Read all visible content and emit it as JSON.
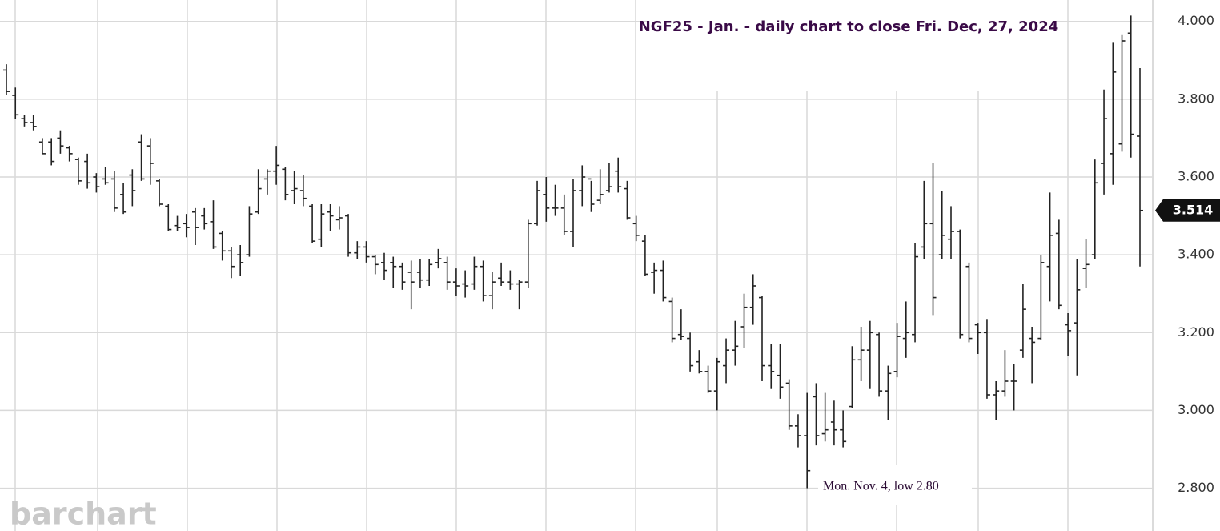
{
  "chart_data": {
    "type": "ohlc",
    "title": "NGF25 - Jan.  - daily chart to close Fri. Dec, 27, 2024",
    "annotation": "Mon. Nov. 4, low 2.80",
    "watermark": "barchart",
    "last_price": 3.514,
    "ylim": [
      2.69,
      4.055
    ],
    "yticks": [
      {
        "value": 2.8,
        "label": "2.800"
      },
      {
        "value": 3.0,
        "label": "3.000"
      },
      {
        "value": 3.2,
        "label": "3.200"
      },
      {
        "value": 3.4,
        "label": "3.400"
      },
      {
        "value": 3.6,
        "label": "3.600"
      },
      {
        "value": 3.8,
        "label": "3.800"
      },
      {
        "value": 4.0,
        "label": "4.000"
      }
    ],
    "grid": true,
    "color": "#222222",
    "open": [
      3.875,
      3.81,
      3.75,
      3.74,
      3.69,
      3.69,
      3.7,
      3.675,
      3.645,
      3.64,
      3.6,
      3.595,
      3.595,
      3.555,
      3.605,
      3.69,
      3.68,
      3.59,
      3.525,
      3.475,
      3.48,
      3.51,
      3.5,
      3.485,
      3.455,
      3.41,
      3.4,
      3.4,
      3.51,
      3.595,
      3.615,
      3.62,
      3.565,
      3.565,
      3.525,
      3.44,
      3.51,
      3.49,
      3.5,
      3.405,
      3.42,
      3.395,
      3.38,
      3.38,
      3.37,
      3.355,
      3.355,
      3.335,
      3.38,
      3.38,
      3.33,
      3.325,
      3.325,
      3.37,
      3.295,
      3.34,
      3.33,
      3.325,
      3.33,
      3.48,
      3.555,
      3.52,
      3.52,
      3.46,
      3.565,
      3.595,
      3.54,
      3.565,
      3.615,
      3.57,
      3.48,
      3.435,
      3.355,
      3.36,
      3.28,
      3.195,
      3.185,
      3.125,
      3.1,
      3.05,
      3.115,
      3.155,
      3.215,
      3.265,
      3.29,
      3.115,
      3.09,
      3.07,
      2.96,
      2.935,
      3.035,
      2.94,
      2.97,
      2.95,
      3.01,
      3.13,
      3.155,
      3.195,
      3.05,
      3.1,
      3.185,
      3.195,
      3.42,
      3.48,
      3.4,
      3.44,
      3.46,
      3.37,
      3.22,
      3.2,
      3.04,
      3.05,
      3.075,
      3.155,
      3.185,
      3.185,
      3.37,
      3.455,
      3.22,
      3.225,
      3.365,
      3.4,
      3.635,
      3.66,
      3.685,
      3.97,
      3.705
    ],
    "high": [
      3.89,
      3.83,
      3.76,
      3.76,
      3.7,
      3.7,
      3.72,
      3.68,
      3.65,
      3.66,
      3.61,
      3.625,
      3.615,
      3.585,
      3.62,
      3.71,
      3.7,
      3.595,
      3.53,
      3.5,
      3.505,
      3.52,
      3.52,
      3.54,
      3.46,
      3.42,
      3.425,
      3.525,
      3.62,
      3.62,
      3.68,
      3.625,
      3.615,
      3.605,
      3.53,
      3.53,
      3.53,
      3.525,
      3.505,
      3.435,
      3.435,
      3.4,
      3.405,
      3.395,
      3.38,
      3.385,
      3.39,
      3.39,
      3.415,
      3.395,
      3.365,
      3.36,
      3.395,
      3.385,
      3.355,
      3.38,
      3.36,
      3.335,
      3.49,
      3.59,
      3.6,
      3.58,
      3.555,
      3.595,
      3.63,
      3.59,
      3.62,
      3.635,
      3.65,
      3.59,
      3.5,
      3.45,
      3.38,
      3.385,
      3.29,
      3.26,
      3.2,
      3.155,
      3.115,
      3.135,
      3.185,
      3.23,
      3.3,
      3.35,
      3.295,
      3.17,
      3.17,
      3.08,
      2.99,
      3.045,
      3.07,
      3.045,
      3.025,
      3.0,
      3.165,
      3.215,
      3.23,
      3.2,
      3.115,
      3.225,
      3.28,
      3.43,
      3.59,
      3.635,
      3.565,
      3.525,
      3.465,
      3.38,
      3.225,
      3.235,
      3.075,
      3.155,
      3.12,
      3.325,
      3.215,
      3.4,
      3.56,
      3.49,
      3.25,
      3.39,
      3.44,
      3.645,
      3.825,
      3.945,
      3.965,
      4.015,
      3.88
    ],
    "low": [
      3.81,
      3.75,
      3.73,
      3.72,
      3.66,
      3.63,
      3.66,
      3.64,
      3.58,
      3.57,
      3.56,
      3.58,
      3.51,
      3.505,
      3.525,
      3.59,
      3.58,
      3.525,
      3.46,
      3.46,
      3.445,
      3.425,
      3.465,
      3.415,
      3.385,
      3.34,
      3.345,
      3.395,
      3.505,
      3.555,
      3.58,
      3.54,
      3.53,
      3.525,
      3.43,
      3.42,
      3.46,
      3.465,
      3.395,
      3.39,
      3.38,
      3.35,
      3.335,
      3.315,
      3.31,
      3.26,
      3.315,
      3.32,
      3.365,
      3.31,
      3.295,
      3.29,
      3.31,
      3.28,
      3.26,
      3.32,
      3.31,
      3.26,
      3.315,
      3.475,
      3.485,
      3.5,
      3.45,
      3.42,
      3.525,
      3.51,
      3.53,
      3.56,
      3.56,
      3.49,
      3.435,
      3.345,
      3.3,
      3.28,
      3.175,
      3.18,
      3.1,
      3.095,
      3.045,
      3.0,
      3.07,
      3.115,
      3.16,
      3.22,
      3.075,
      3.055,
      3.03,
      2.95,
      2.905,
      2.8,
      2.91,
      2.92,
      2.91,
      2.905,
      3.005,
      3.075,
      3.055,
      3.035,
      2.975,
      3.085,
      3.135,
      3.175,
      3.39,
      3.245,
      3.39,
      3.39,
      3.185,
      3.175,
      3.145,
      3.03,
      2.975,
      3.035,
      3.0,
      3.135,
      3.07,
      3.18,
      3.28,
      3.26,
      3.14,
      3.09,
      3.315,
      3.39,
      3.555,
      3.58,
      3.665,
      3.65,
      3.37
    ],
    "close": [
      3.82,
      3.76,
      3.74,
      3.73,
      3.66,
      3.64,
      3.68,
      3.66,
      3.59,
      3.585,
      3.575,
      3.585,
      3.52,
      3.51,
      3.565,
      3.595,
      3.635,
      3.53,
      3.465,
      3.47,
      3.47,
      3.47,
      3.48,
      3.42,
      3.41,
      3.37,
      3.38,
      3.505,
      3.57,
      3.615,
      3.63,
      3.555,
      3.57,
      3.545,
      3.435,
      3.505,
      3.5,
      3.495,
      3.405,
      3.42,
      3.395,
      3.375,
      3.36,
      3.37,
      3.33,
      3.33,
      3.335,
      3.375,
      3.39,
      3.33,
      3.32,
      3.32,
      3.37,
      3.295,
      3.33,
      3.33,
      3.325,
      3.33,
      3.48,
      3.565,
      3.52,
      3.52,
      3.46,
      3.565,
      3.6,
      3.53,
      3.555,
      3.575,
      3.575,
      3.495,
      3.45,
      3.35,
      3.36,
      3.29,
      3.185,
      3.19,
      3.115,
      3.1,
      3.05,
      3.125,
      3.155,
      3.165,
      3.265,
      3.32,
      3.115,
      3.1,
      3.06,
      2.96,
      2.935,
      2.845,
      2.935,
      2.95,
      2.95,
      2.92,
      3.13,
      3.155,
      3.2,
      3.05,
      3.095,
      3.19,
      3.2,
      3.395,
      3.48,
      3.29,
      3.45,
      3.46,
      3.195,
      3.185,
      3.2,
      3.04,
      3.05,
      3.075,
      3.075,
      3.26,
      3.175,
      3.38,
      3.45,
      3.27,
      3.205,
      3.31,
      3.375,
      3.585,
      3.75,
      3.87,
      3.95,
      3.71,
      3.514
    ]
  }
}
